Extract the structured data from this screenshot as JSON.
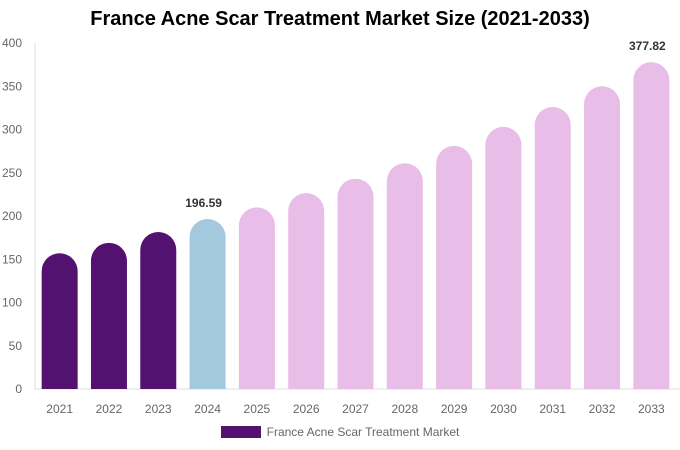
{
  "chart_data": {
    "type": "bar",
    "title": "France Acne Scar Treatment Market Size (2021-2033)",
    "xlabel": "",
    "ylabel": "",
    "categories": [
      "2021",
      "2022",
      "2023",
      "2024",
      "2025",
      "2026",
      "2027",
      "2028",
      "2029",
      "2030",
      "2031",
      "2032",
      "2033"
    ],
    "series": [
      {
        "name": "France Acne Scar Treatment Market",
        "values": [
          157,
          169,
          181.5,
          196.59,
          210,
          226.5,
          243,
          261,
          281,
          303,
          326,
          350,
          377.82
        ]
      }
    ],
    "data_labels": {
      "2024": "196.59",
      "2033": "377.82"
    },
    "ylim": [
      0,
      400
    ],
    "yticks": [
      0,
      50,
      100,
      150,
      200,
      250,
      300,
      350,
      400
    ],
    "grid": false,
    "legend_position": "bottom",
    "colors": {
      "historical": "#541270",
      "current": "#a3c9de",
      "forecast": "#e8bde8",
      "legend": "#541270"
    },
    "bar_color_groups": [
      "historical",
      "historical",
      "historical",
      "current",
      "forecast",
      "forecast",
      "forecast",
      "forecast",
      "forecast",
      "forecast",
      "forecast",
      "forecast",
      "forecast"
    ]
  }
}
